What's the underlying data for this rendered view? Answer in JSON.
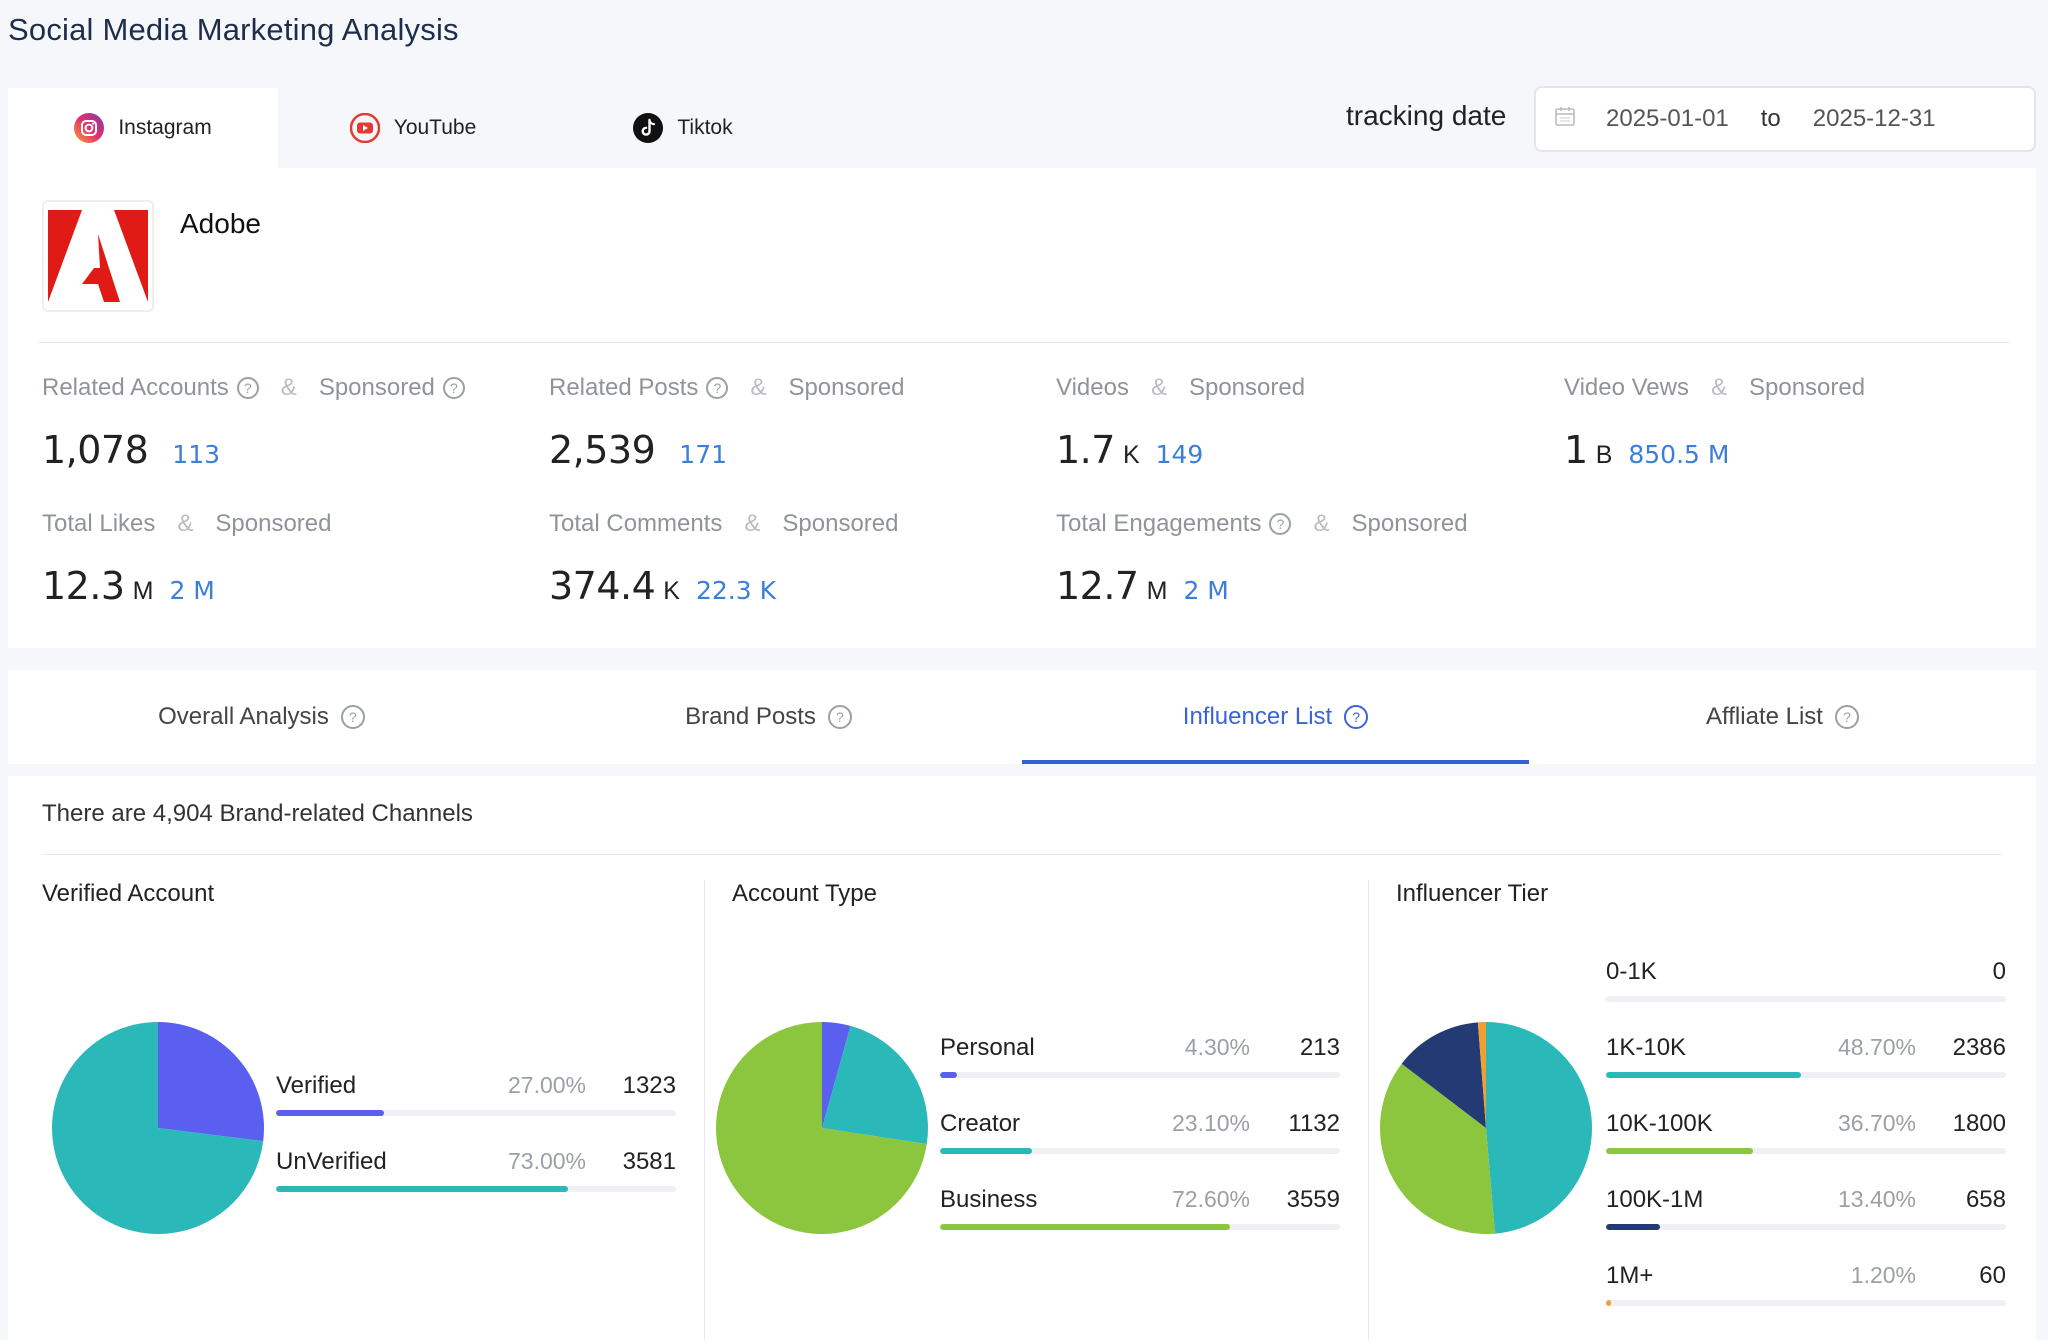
{
  "page_title": "Social Media Marketing Analysis",
  "platform_tabs": [
    {
      "label": "Instagram",
      "icon": "instagram-icon",
      "active": true
    },
    {
      "label": "YouTube",
      "icon": "youtube-icon",
      "active": false
    },
    {
      "label": "Tiktok",
      "icon": "tiktok-icon",
      "active": false
    }
  ],
  "tracking": {
    "label": "tracking date",
    "start": "2025-01-01",
    "separator": "to",
    "end": "2025-12-31"
  },
  "brand": {
    "name": "Adobe",
    "logo_color": "#e01a14"
  },
  "metrics": [
    {
      "label": "Related Accounts",
      "sponsored_label": "Sponsored",
      "amp": "&",
      "value": "1,078",
      "unit": "",
      "sub": "113"
    },
    {
      "label": "Related Posts",
      "sponsored_label": "Sponsored",
      "amp": "&",
      "value": "2,539",
      "unit": "",
      "sub": "171"
    },
    {
      "label": "Videos",
      "sponsored_label": "Sponsored",
      "amp": "&",
      "value": "1.7",
      "unit": "K",
      "sub": "149"
    },
    {
      "label": "Video Vews",
      "sponsored_label": "Sponsored",
      "amp": "&",
      "value": "1",
      "unit": "B",
      "sub": "850.5 M"
    },
    {
      "label": "Total Likes",
      "sponsored_label": "Sponsored",
      "amp": "&",
      "value": "12.3",
      "unit": "M",
      "sub": "2 M"
    },
    {
      "label": "Total Comments",
      "sponsored_label": "Sponsored",
      "amp": "&",
      "value": "374.4",
      "unit": "K",
      "sub": "22.3 K"
    },
    {
      "label": "Total Engagements",
      "sponsored_label": "Sponsored",
      "amp": "&",
      "value": "12.7",
      "unit": "M",
      "sub": "2 M"
    }
  ],
  "analysis_tabs": [
    {
      "label": "Overall Analysis",
      "active": false
    },
    {
      "label": "Brand Posts",
      "active": false
    },
    {
      "label": "Influencer List",
      "active": true
    },
    {
      "label": "Affliate List",
      "active": false
    }
  ],
  "channels_text": "There are 4,904 Brand-related Channels",
  "chart_data": [
    {
      "type": "pie",
      "title": "Verified Account",
      "categories": [
        "Verified",
        "UnVerified"
      ],
      "values": [
        1323,
        3581
      ],
      "percent_labels": [
        "27.00%",
        "73.00%"
      ],
      "percents": [
        27.0,
        73.0
      ],
      "colors": [
        "#5b5ff0",
        "#2bb8b8"
      ]
    },
    {
      "type": "pie",
      "title": "Account Type",
      "categories": [
        "Personal",
        "Creator",
        "Business"
      ],
      "values": [
        213,
        1132,
        3559
      ],
      "percent_labels": [
        "4.30%",
        "23.10%",
        "72.60%"
      ],
      "percents": [
        4.3,
        23.1,
        72.6
      ],
      "colors": [
        "#5b5ff0",
        "#2bb8b8",
        "#8cc63f"
      ]
    },
    {
      "type": "pie",
      "title": "Influencer Tier",
      "categories": [
        "0-1K",
        "1K-10K",
        "10K-100K",
        "100K-1M",
        "1M+"
      ],
      "values": [
        0,
        2386,
        1800,
        658,
        60
      ],
      "percent_labels": [
        "",
        "48.70%",
        "36.70%",
        "13.40%",
        "1.20%"
      ],
      "percents": [
        0,
        48.7,
        36.7,
        13.4,
        1.2
      ],
      "colors": [
        "#5b5ff0",
        "#2bb8b8",
        "#8cc63f",
        "#233a75",
        "#f0a030"
      ]
    }
  ]
}
